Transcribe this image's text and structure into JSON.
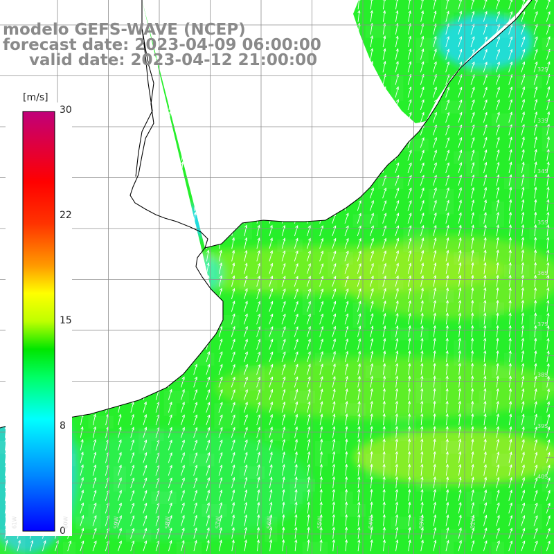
{
  "title": {
    "model": "modelo GEFS-WAVE (NCEP)",
    "forecast": "forecast date: 2023-04-09 06:00:00",
    "valid": "valid date: 2023-04-12 21:00:00"
  },
  "colorbar": {
    "unit": "[m/s]",
    "min": 0,
    "max": 30,
    "tick_labels": [
      "30",
      "22",
      "15",
      "8",
      "0"
    ],
    "tick_values": [
      30,
      22,
      15,
      8,
      0
    ],
    "gradient_stops": [
      {
        "value": 0,
        "color": "#0000ff"
      },
      {
        "value": 4,
        "color": "#0088ff"
      },
      {
        "value": 8,
        "color": "#00ffff"
      },
      {
        "value": 11,
        "color": "#00ff66"
      },
      {
        "value": 13,
        "color": "#00e600"
      },
      {
        "value": 15,
        "color": "#bfff00"
      },
      {
        "value": 17,
        "color": "#ffff00"
      },
      {
        "value": 19,
        "color": "#ff9900"
      },
      {
        "value": 22,
        "color": "#ff3300"
      },
      {
        "value": 25,
        "color": "#ff0000"
      },
      {
        "value": 30,
        "color": "#c0007a"
      }
    ]
  },
  "map": {
    "grid_color": "#999999",
    "coast_color": "#000000",
    "arrow_color": "#ffffff",
    "lat_labels": [
      "32S",
      "33S",
      "34S",
      "35S",
      "36S",
      "37S",
      "38S",
      "39S",
      "40S"
    ],
    "lon_labels": [
      "61W",
      "60W",
      "59W",
      "58W",
      "57W",
      "56W",
      "55W",
      "54W",
      "53W",
      "52W"
    ]
  }
}
